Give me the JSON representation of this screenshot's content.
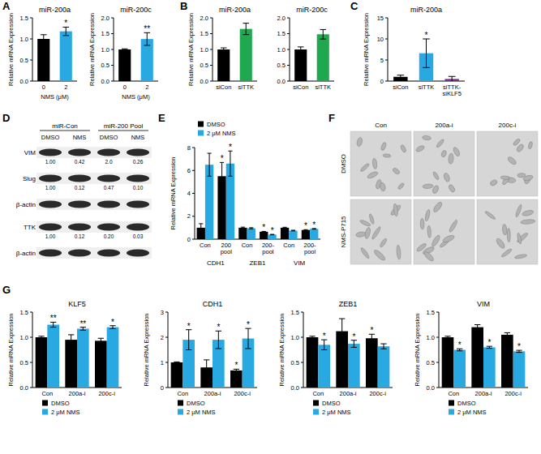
{
  "panel_labels": [
    "A",
    "B",
    "C",
    "D",
    "E",
    "F",
    "G"
  ],
  "chart_data": [
    {
      "type": "bar",
      "title": "miR-200a",
      "y_label": "Relative mRNA Expression",
      "x_label": "NMS (μM)",
      "categories": [
        "0",
        "2"
      ],
      "values": [
        1.0,
        1.18
      ],
      "errors": [
        0.1,
        0.1
      ],
      "significance": [
        null,
        "*"
      ],
      "colors": [
        "#000000",
        "#29a9e1"
      ],
      "ylim": [
        0,
        1.5
      ],
      "yticks": [
        {
          "value": 0,
          "label": "0.0"
        },
        {
          "value": 0.5,
          "label": "0.5"
        },
        {
          "value": 1,
          "label": "1.0"
        },
        {
          "value": 1.5,
          "label": "1.5"
        }
      ]
    },
    {
      "type": "bar",
      "title": "miR-200c",
      "y_label": "Relative mRNA Expression",
      "x_label": "NMS (μM)",
      "categories": [
        "0",
        "2"
      ],
      "values": [
        1.0,
        1.33
      ],
      "errors": [
        0.02,
        0.2
      ],
      "significance": [
        null,
        "**"
      ],
      "colors": [
        "#000000",
        "#29a9e1"
      ],
      "ylim": [
        0,
        2
      ],
      "yticks": [
        {
          "value": 0,
          "label": "0.0"
        },
        {
          "value": 0.5,
          "label": "0.5"
        },
        {
          "value": 1,
          "label": "1.0"
        },
        {
          "value": 1.5,
          "label": "1.5"
        },
        {
          "value": 2,
          "label": "2.0"
        }
      ]
    },
    {
      "type": "bar",
      "title": "miR-200a",
      "y_label": "Relative mRNA Expression",
      "categories": [
        "siCon",
        "siTTK"
      ],
      "values": [
        1.0,
        1.65
      ],
      "errors": [
        0.05,
        0.18
      ],
      "significance": [
        null,
        null
      ],
      "colors": [
        "#000000",
        "#1fa84f"
      ],
      "ylim": [
        0,
        2
      ],
      "yticks": [
        {
          "value": 0,
          "label": "0.0"
        },
        {
          "value": 0.5,
          "label": "0.5"
        },
        {
          "value": 1,
          "label": "1.0"
        },
        {
          "value": 1.5,
          "label": "1.5"
        },
        {
          "value": 2,
          "label": "2.0"
        }
      ]
    },
    {
      "type": "bar",
      "title": "miR-200c",
      "categories": [
        "siCon",
        "siTTK"
      ],
      "values": [
        1.0,
        1.48
      ],
      "errors": [
        0.08,
        0.15
      ],
      "significance": [
        null,
        null
      ],
      "colors": [
        "#000000",
        "#1fa84f"
      ],
      "ylim": [
        0,
        2
      ],
      "yticks": [
        {
          "value": 0,
          "label": "0.0"
        },
        {
          "value": 0.5,
          "label": "0.5"
        },
        {
          "value": 1,
          "label": "1.0"
        },
        {
          "value": 1.5,
          "label": "1.5"
        },
        {
          "value": 2,
          "label": "2.0"
        }
      ]
    },
    {
      "type": "bar",
      "title": "miR-200a",
      "y_label": "Relative mRNA Expression",
      "categories": [
        "siCon",
        "siTTK",
        "siTTK-siKLF5"
      ],
      "values": [
        1.0,
        6.6,
        0.5
      ],
      "errors": [
        0.4,
        3.4,
        0.6
      ],
      "significance": [
        null,
        "*",
        null
      ],
      "colors": [
        "#000000",
        "#29a9e1",
        "#7a2e8e"
      ],
      "ylim": [
        0,
        15
      ],
      "yticks": [
        0,
        5,
        10,
        15
      ]
    },
    {
      "type": "bar",
      "y_label": "Relative mRNA Expression",
      "categories": [
        "Con",
        "200 pool",
        "Con",
        "200-pool",
        "Con",
        "200-pool"
      ],
      "groups": [
        "CDH1",
        "ZEB1",
        "VIM"
      ],
      "series": [
        {
          "name": "DMSO",
          "color": "#000000",
          "values": [
            1.0,
            5.5,
            1.0,
            0.65,
            1.0,
            0.8
          ],
          "errors": [
            0.35,
            1.2,
            0.05,
            0.03,
            0.04,
            0.03
          ],
          "significance": [
            null,
            "*",
            null,
            "*",
            null,
            "*"
          ]
        },
        {
          "name": "2 μM NMS",
          "color": "#29a9e1",
          "values": [
            6.5,
            6.6,
            0.95,
            0.4,
            0.75,
            0.9
          ],
          "errors": [
            1.0,
            1.1,
            0.05,
            0.02,
            0.03,
            0.03
          ],
          "significance": [
            null,
            "*",
            null,
            "*",
            null,
            "*"
          ]
        }
      ],
      "legend": "upper left",
      "ylim": [
        0,
        8
      ],
      "yticks": [
        0,
        2,
        4,
        6,
        8
      ]
    },
    {
      "type": "bar",
      "title": "KLF5",
      "y_label": "Relative mRNA Expression",
      "categories": [
        "Con",
        "200a-i",
        "200c-i"
      ],
      "series": [
        {
          "name": "DMSO",
          "color": "#000000",
          "values": [
            1.0,
            0.95,
            0.93
          ],
          "errors": [
            0.02,
            0.1,
            0.05
          ],
          "significance": [
            null,
            null,
            null
          ]
        },
        {
          "name": "2 μM NMS",
          "color": "#29a9e1",
          "values": [
            1.25,
            1.17,
            1.2
          ],
          "errors": [
            0.05,
            0.03,
            0.03
          ],
          "significance": [
            "**",
            "**",
            "*"
          ]
        }
      ],
      "legend": "bottom",
      "ylim": [
        0,
        1.5
      ],
      "yticks": [
        {
          "value": 0,
          "label": "0.0"
        },
        {
          "value": 0.5,
          "label": "0.5"
        },
        {
          "value": 1,
          "label": "1.0"
        },
        {
          "value": 1.5,
          "label": "1.5"
        }
      ]
    },
    {
      "type": "bar",
      "title": "CDH1",
      "y_label": "Relative mRNA Expression",
      "categories": [
        "Con",
        "200a-i",
        "200c-i"
      ],
      "series": [
        {
          "name": "DMSO",
          "color": "#000000",
          "values": [
            1.0,
            0.8,
            0.68
          ],
          "errors": [
            0.02,
            0.3,
            0.05
          ],
          "significance": [
            null,
            null,
            "*"
          ]
        },
        {
          "name": "2 μM NMS",
          "color": "#29a9e1",
          "values": [
            1.9,
            1.9,
            1.95
          ],
          "errors": [
            0.4,
            0.35,
            0.4
          ],
          "significance": [
            "*",
            "*",
            "*"
          ]
        }
      ],
      "legend": "bottom",
      "ylim": [
        0,
        3
      ],
      "yticks": [
        0,
        1,
        2,
        3
      ]
    },
    {
      "type": "bar",
      "title": "ZEB1",
      "y_label": "Relative mRNA Expression",
      "categories": [
        "Con",
        "200a-i",
        "200c-i"
      ],
      "series": [
        {
          "name": "DMSO",
          "color": "#000000",
          "values": [
            1.0,
            1.12,
            0.98
          ],
          "errors": [
            0.02,
            0.25,
            0.08
          ],
          "significance": [
            null,
            null,
            "*"
          ]
        },
        {
          "name": "2 μM NMS",
          "color": "#29a9e1",
          "values": [
            0.85,
            0.87,
            0.82
          ],
          "errors": [
            0.1,
            0.07,
            0.05
          ],
          "significance": [
            "*",
            "*",
            null
          ]
        }
      ],
      "legend": "bottom",
      "ylim": [
        0,
        1.5
      ],
      "yticks": [
        {
          "value": 0,
          "label": "0.0"
        },
        {
          "value": 0.5,
          "label": "0.5"
        },
        {
          "value": 1,
          "label": "1.0"
        },
        {
          "value": 1.5,
          "label": "1.5"
        }
      ]
    },
    {
      "type": "bar",
      "title": "VIM",
      "y_label": "Relative mRNA Expression",
      "categories": [
        "Con",
        "200a-i",
        "200c-i"
      ],
      "series": [
        {
          "name": "DMSO",
          "color": "#000000",
          "values": [
            1.0,
            1.2,
            1.05
          ],
          "errors": [
            0.02,
            0.05,
            0.04
          ],
          "significance": [
            null,
            null,
            null
          ]
        },
        {
          "name": "2 μM NMS",
          "color": "#29a9e1",
          "values": [
            0.75,
            0.8,
            0.72
          ],
          "errors": [
            0.02,
            0.02,
            0.02
          ],
          "significance": [
            "*",
            "*",
            "*"
          ]
        }
      ],
      "legend": "bottom",
      "ylim": [
        0,
        1.5
      ],
      "yticks": [
        {
          "value": 0,
          "label": "0.0"
        },
        {
          "value": 0.5,
          "label": "0.5"
        },
        {
          "value": 1,
          "label": "1.0"
        },
        {
          "value": 1.5,
          "label": "1.5"
        }
      ]
    }
  ],
  "blot": {
    "groups": [
      {
        "label": "miR-Con",
        "lanes": [
          "DMSO",
          "NMS"
        ]
      },
      {
        "label": "miR-200 Pool",
        "lanes": [
          "DMSO",
          "NMS"
        ]
      }
    ],
    "rows": [
      {
        "label": "VIM",
        "quantification": [
          "1.00",
          "0.42",
          "2.0",
          "0.26"
        ]
      },
      {
        "label": "Slug",
        "quantification": [
          "1.00",
          "0.12",
          "0.47",
          "0.10"
        ]
      },
      {
        "label": "β-actin"
      },
      {
        "label": "TTK",
        "quantification": [
          "1.00",
          "0.12",
          "0.20",
          "0.03"
        ]
      },
      {
        "label": "β-actin"
      }
    ]
  },
  "micrographs": {
    "columns": [
      "Con",
      "200a-i",
      "200c-i"
    ],
    "rows": [
      "DMSO",
      "NMS-P715"
    ]
  }
}
